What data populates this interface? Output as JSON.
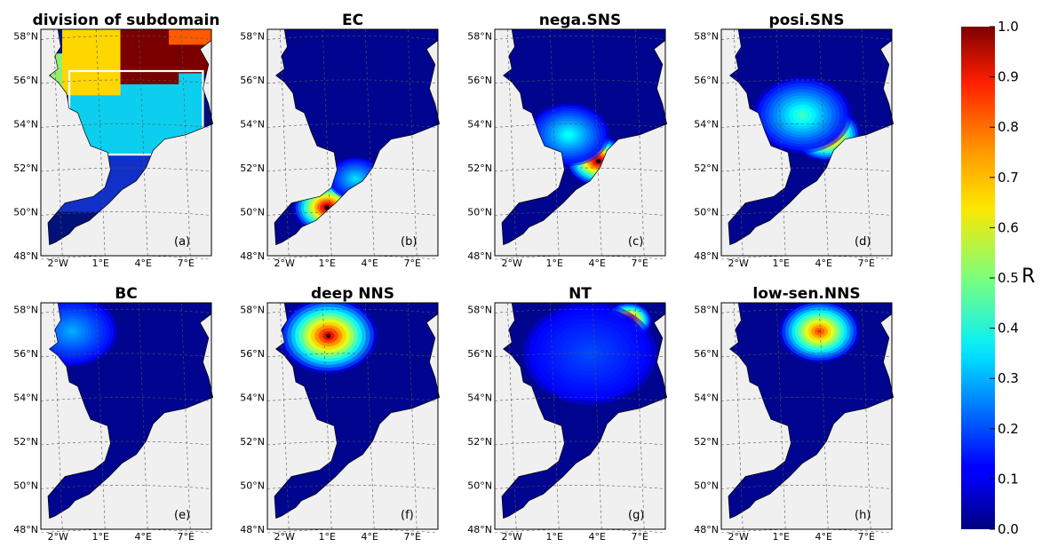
{
  "chart_data": {
    "type": "heatmap",
    "colormap": "jet",
    "colorbar": {
      "label": "R",
      "range": [
        0.0,
        1.0
      ],
      "ticks": [
        "1.0",
        "0.9",
        "0.8",
        "0.7",
        "0.6",
        "0.5",
        "0.4",
        "0.3",
        "0.2",
        "0.1",
        "0.0"
      ]
    },
    "lat_tick_labels": [
      "58°N",
      "56°N",
      "54°N",
      "52°N",
      "50°N",
      "48°N"
    ],
    "lon_tick_labels": [
      "2°W",
      "1°E",
      "4°E",
      "7°E"
    ],
    "panels": [
      {
        "title": "division of subdomain",
        "label": "(a)",
        "kind": "subdomains",
        "regions": [
          {
            "color": "#ffd700"
          },
          {
            "color": "#7a0000"
          },
          {
            "color": "#ff5a00"
          },
          {
            "color": "#0ccff0"
          },
          {
            "color": "#1030c8"
          },
          {
            "color": "#00127a"
          },
          {
            "color": "#90ee70"
          }
        ]
      },
      {
        "title": "EC",
        "label": "(b)",
        "kind": "correlation",
        "hotspots": [
          {
            "lon": 1.0,
            "lat": 50.2,
            "peak": 1.0,
            "spread": 1.5
          },
          {
            "lon": 3.0,
            "lat": 51.5,
            "peak": 0.35,
            "spread": 1.2
          }
        ]
      },
      {
        "title": "nega.SNS",
        "label": "(c)",
        "kind": "correlation",
        "hotspots": [
          {
            "lon": 4.1,
            "lat": 52.3,
            "peak": 1.0,
            "spread": 1.4
          },
          {
            "lon": 2.0,
            "lat": 53.5,
            "peak": 0.4,
            "spread": 1.8
          }
        ]
      },
      {
        "title": "posi.SNS",
        "label": "(d)",
        "kind": "correlation",
        "hotspots": [
          {
            "lon": 4.2,
            "lat": 53.5,
            "peak": 1.0,
            "spread": 1.5
          },
          {
            "lon": 2.5,
            "lat": 54.4,
            "peak": 0.45,
            "spread": 2.2
          }
        ]
      },
      {
        "title": "BC",
        "label": "(e)",
        "kind": "correlation",
        "hotspots": [
          {
            "lon": -1.9,
            "lat": 56.5,
            "peak": 1.0,
            "spread": 1.2
          },
          {
            "lon": -1.0,
            "lat": 57.0,
            "peak": 0.3,
            "spread": 2.0
          }
        ]
      },
      {
        "title": "deep NNS",
        "label": "(f)",
        "kind": "correlation",
        "hotspots": [
          {
            "lon": 1.1,
            "lat": 56.8,
            "peak": 0.95,
            "spread": 2.2
          }
        ]
      },
      {
        "title": "NT",
        "label": "(g)",
        "kind": "correlation",
        "hotspots": [
          {
            "lon": 6.2,
            "lat": 57.5,
            "peak": 1.0,
            "spread": 1.0
          },
          {
            "lon": 3.5,
            "lat": 56.0,
            "peak": 0.2,
            "spread": 3.0
          }
        ]
      },
      {
        "title": "low-sen.NNS",
        "label": "(h)",
        "kind": "correlation",
        "hotspots": [
          {
            "lon": 3.7,
            "lat": 57.0,
            "peak": 0.85,
            "spread": 1.8
          }
        ]
      }
    ]
  }
}
